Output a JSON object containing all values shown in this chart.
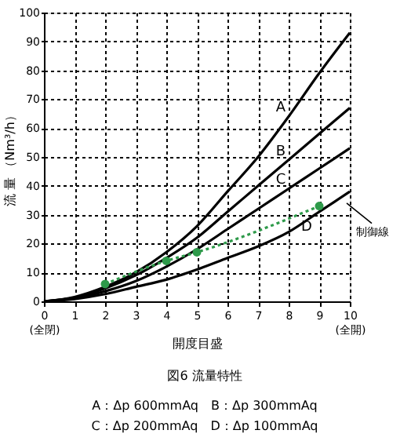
{
  "chart_data": {
    "type": "line",
    "xlabel": "開度目盛",
    "ylabel": "流 量 （Nm³/h）",
    "x": [
      0,
      1,
      2,
      3,
      4,
      5,
      6,
      7,
      8,
      9,
      10
    ],
    "series": [
      {
        "name": "A",
        "color": "#000000",
        "values": [
          0,
          1.5,
          5,
          10,
          17,
          26,
          38,
          50,
          64,
          79,
          93
        ]
      },
      {
        "name": "B",
        "color": "#000000",
        "values": [
          0,
          1.3,
          4.5,
          9,
          15,
          22,
          31,
          40,
          49,
          58,
          67
        ]
      },
      {
        "name": "C",
        "color": "#000000",
        "values": [
          0,
          1.1,
          3.5,
          7,
          12,
          18,
          25,
          32,
          39,
          46,
          53
        ]
      },
      {
        "name": "D",
        "color": "#000000",
        "values": [
          0,
          0.8,
          2.5,
          5,
          7.5,
          11,
          15,
          19,
          24,
          31,
          38
        ]
      },
      {
        "color": "#2e9a4a",
        "x": [
          2,
          4,
          5,
          9
        ],
        "values": [
          6,
          14,
          17,
          33
        ],
        "marker": "circle",
        "line_style": "dotted"
      }
    ],
    "xlim": [
      0,
      10
    ],
    "ylim": [
      0,
      100
    ],
    "xticks": [
      {
        "value": 0,
        "label": "0\n(全閉)"
      },
      1,
      2,
      3,
      4,
      5,
      6,
      7,
      8,
      9,
      {
        "value": 10,
        "label": "10\n(全開)"
      }
    ],
    "yticks": [
      0,
      10,
      20,
      30,
      40,
      50,
      60,
      70,
      80,
      90,
      100
    ],
    "grid": true,
    "annotations": [
      "制御線",
      "図6 流量特性",
      "A：Δp 600mmAq　B：Δp 300mmAq",
      "C：Δp 200mmAq　D：Δp 100mmAq"
    ]
  }
}
